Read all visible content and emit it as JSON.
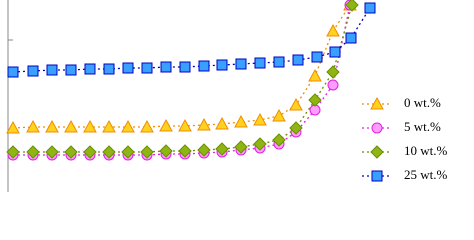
{
  "chart_data": {
    "type": "line",
    "xlim": [
      0,
      474
    ],
    "ylim": [
      0,
      192
    ],
    "yticks": [
      152
    ],
    "legend": "lower right",
    "series": [
      {
        "name": "0 wt.%",
        "color": "#f08c00",
        "fill": "#ffd21f",
        "marker": "triangle",
        "x": [
          13,
          33,
          52,
          71,
          90,
          109,
          128,
          147,
          166,
          185,
          204,
          222,
          241,
          260,
          279,
          296,
          315,
          333,
          350
        ],
        "values": [
          64,
          65,
          65,
          65,
          65,
          65,
          65,
          65,
          66,
          66,
          67,
          68,
          70,
          72,
          76,
          87,
          116,
          161,
          187
        ]
      },
      {
        "name": "5 wt.%",
        "color": "#e020e0",
        "fill": "#ff9cff",
        "marker": "circle",
        "x": [
          13,
          33,
          52,
          71,
          90,
          109,
          128,
          147,
          166,
          185,
          204,
          222,
          241,
          260,
          279,
          296,
          315,
          333,
          350
        ],
        "values": [
          37,
          37,
          37,
          37,
          37,
          37,
          37,
          37,
          38,
          38,
          39,
          40,
          42,
          44,
          48,
          60,
          82,
          107,
          187
        ]
      },
      {
        "name": "10 wt.%",
        "color": "#6b8e00",
        "fill": "#8fb515",
        "marker": "diamond",
        "x": [
          13,
          33,
          52,
          71,
          90,
          109,
          128,
          147,
          166,
          185,
          204,
          222,
          241,
          260,
          279,
          296,
          315,
          333,
          352
        ],
        "values": [
          40,
          40,
          40,
          40,
          40,
          40,
          40,
          40,
          41,
          41,
          42,
          43,
          45,
          48,
          52,
          64,
          92,
          120,
          187
        ]
      },
      {
        "name": "25 wt.%",
        "color": "#0000c0",
        "fill": "#3aa0ff",
        "marker": "square",
        "x": [
          13,
          33,
          52,
          71,
          90,
          109,
          128,
          147,
          166,
          185,
          204,
          222,
          241,
          260,
          279,
          298,
          317,
          335,
          351,
          370
        ],
        "values": [
          120,
          121,
          122,
          122,
          123,
          123,
          124,
          124,
          125,
          125,
          126,
          127,
          128,
          129,
          130,
          132,
          135,
          140,
          154,
          184
        ]
      }
    ]
  }
}
